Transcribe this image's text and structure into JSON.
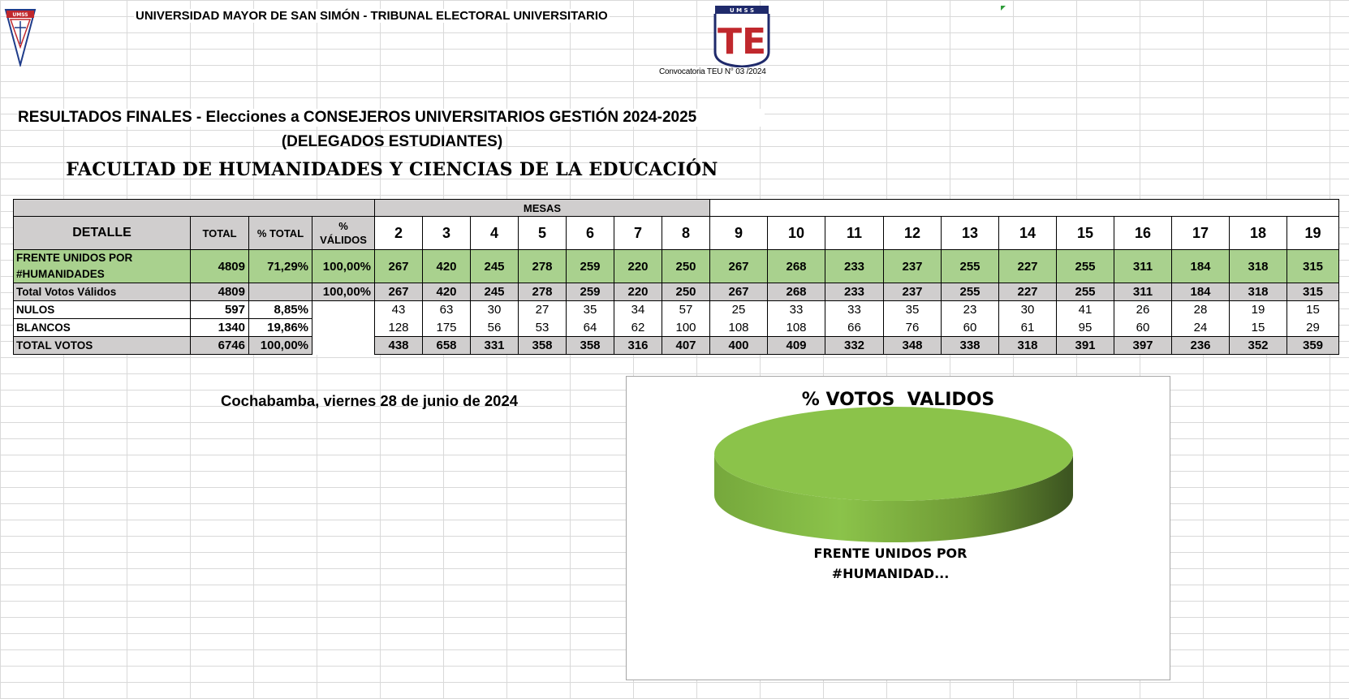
{
  "header": {
    "university": "UNIVERSIDAD MAYOR DE SAN SIMÓN - TRIBUNAL ELECTORAL UNIVERSITARIO",
    "convocatoria": "Convocatoria TEU N° 03 /2024",
    "logo_left_text": "UMSS",
    "logo_right_letters": "U M S S",
    "logo_right_initials": "TE"
  },
  "titles": {
    "line1": "RESULTADOS FINALES - Elecciones a CONSEJEROS UNIVERSITARIOS GESTIÓN 2024-2025",
    "line2": "(DELEGADOS ESTUDIANTES)",
    "line3": "FACULTAD DE HUMANIDADES Y CIENCIAS DE LA EDUCACIÓN"
  },
  "table": {
    "mesas_label": "MESAS",
    "headers": {
      "detalle": "DETALLE",
      "total": "TOTAL",
      "pct_total": "% TOTAL",
      "pct_validos_1": "%",
      "pct_validos_2": "VÁLIDOS"
    },
    "mesas": [
      "2",
      "3",
      "4",
      "5",
      "6",
      "7",
      "8",
      "9",
      "10",
      "11",
      "12",
      "13",
      "14",
      "15",
      "16",
      "17",
      "18",
      "19"
    ],
    "rows": {
      "frente": {
        "label": "FRENTE UNIDOS POR #HUMANIDADES",
        "total": "4809",
        "pct_total": "71,29%",
        "pct_validos": "100,00%",
        "values": [
          "267",
          "420",
          "245",
          "278",
          "259",
          "220",
          "250",
          "267",
          "268",
          "233",
          "237",
          "255",
          "227",
          "255",
          "311",
          "184",
          "318",
          "315"
        ]
      },
      "validos": {
        "label": "Total Votos Válidos",
        "total": "4809",
        "pct_total": "",
        "pct_validos": "100,00%",
        "values": [
          "267",
          "420",
          "245",
          "278",
          "259",
          "220",
          "250",
          "267",
          "268",
          "233",
          "237",
          "255",
          "227",
          "255",
          "311",
          "184",
          "318",
          "315"
        ]
      },
      "nulos": {
        "label": "NULOS",
        "total": "597",
        "pct_total": "8,85%",
        "values": [
          "43",
          "63",
          "30",
          "27",
          "35",
          "34",
          "57",
          "25",
          "33",
          "33",
          "35",
          "23",
          "30",
          "41",
          "26",
          "28",
          "19",
          "15"
        ]
      },
      "blancos": {
        "label": "BLANCOS",
        "total": "1340",
        "pct_total": "19,86%",
        "values": [
          "128",
          "175",
          "56",
          "53",
          "64",
          "62",
          "100",
          "108",
          "108",
          "66",
          "76",
          "60",
          "61",
          "95",
          "60",
          "24",
          "15",
          "29"
        ]
      },
      "total_votos": {
        "label": "TOTAL VOTOS",
        "total": "6746",
        "pct_total": "100,00%",
        "values": [
          "438",
          "658",
          "331",
          "358",
          "358",
          "316",
          "407",
          "400",
          "409",
          "332",
          "348",
          "338",
          "318",
          "391",
          "397",
          "236",
          "352",
          "359"
        ]
      }
    }
  },
  "date_line": "Cochabamba, viernes 28 de junio de 2024",
  "chart_data": {
    "type": "pie",
    "title": "% VOTOS  VALIDOS",
    "categories": [
      "FRENTE UNIDOS POR #HUMANIDADES"
    ],
    "values": [
      100
    ],
    "data_label": "FRENTE UNIDOS POR #HUMANIDAD...",
    "colors": [
      "#8bc34a"
    ],
    "style": "3d"
  }
}
